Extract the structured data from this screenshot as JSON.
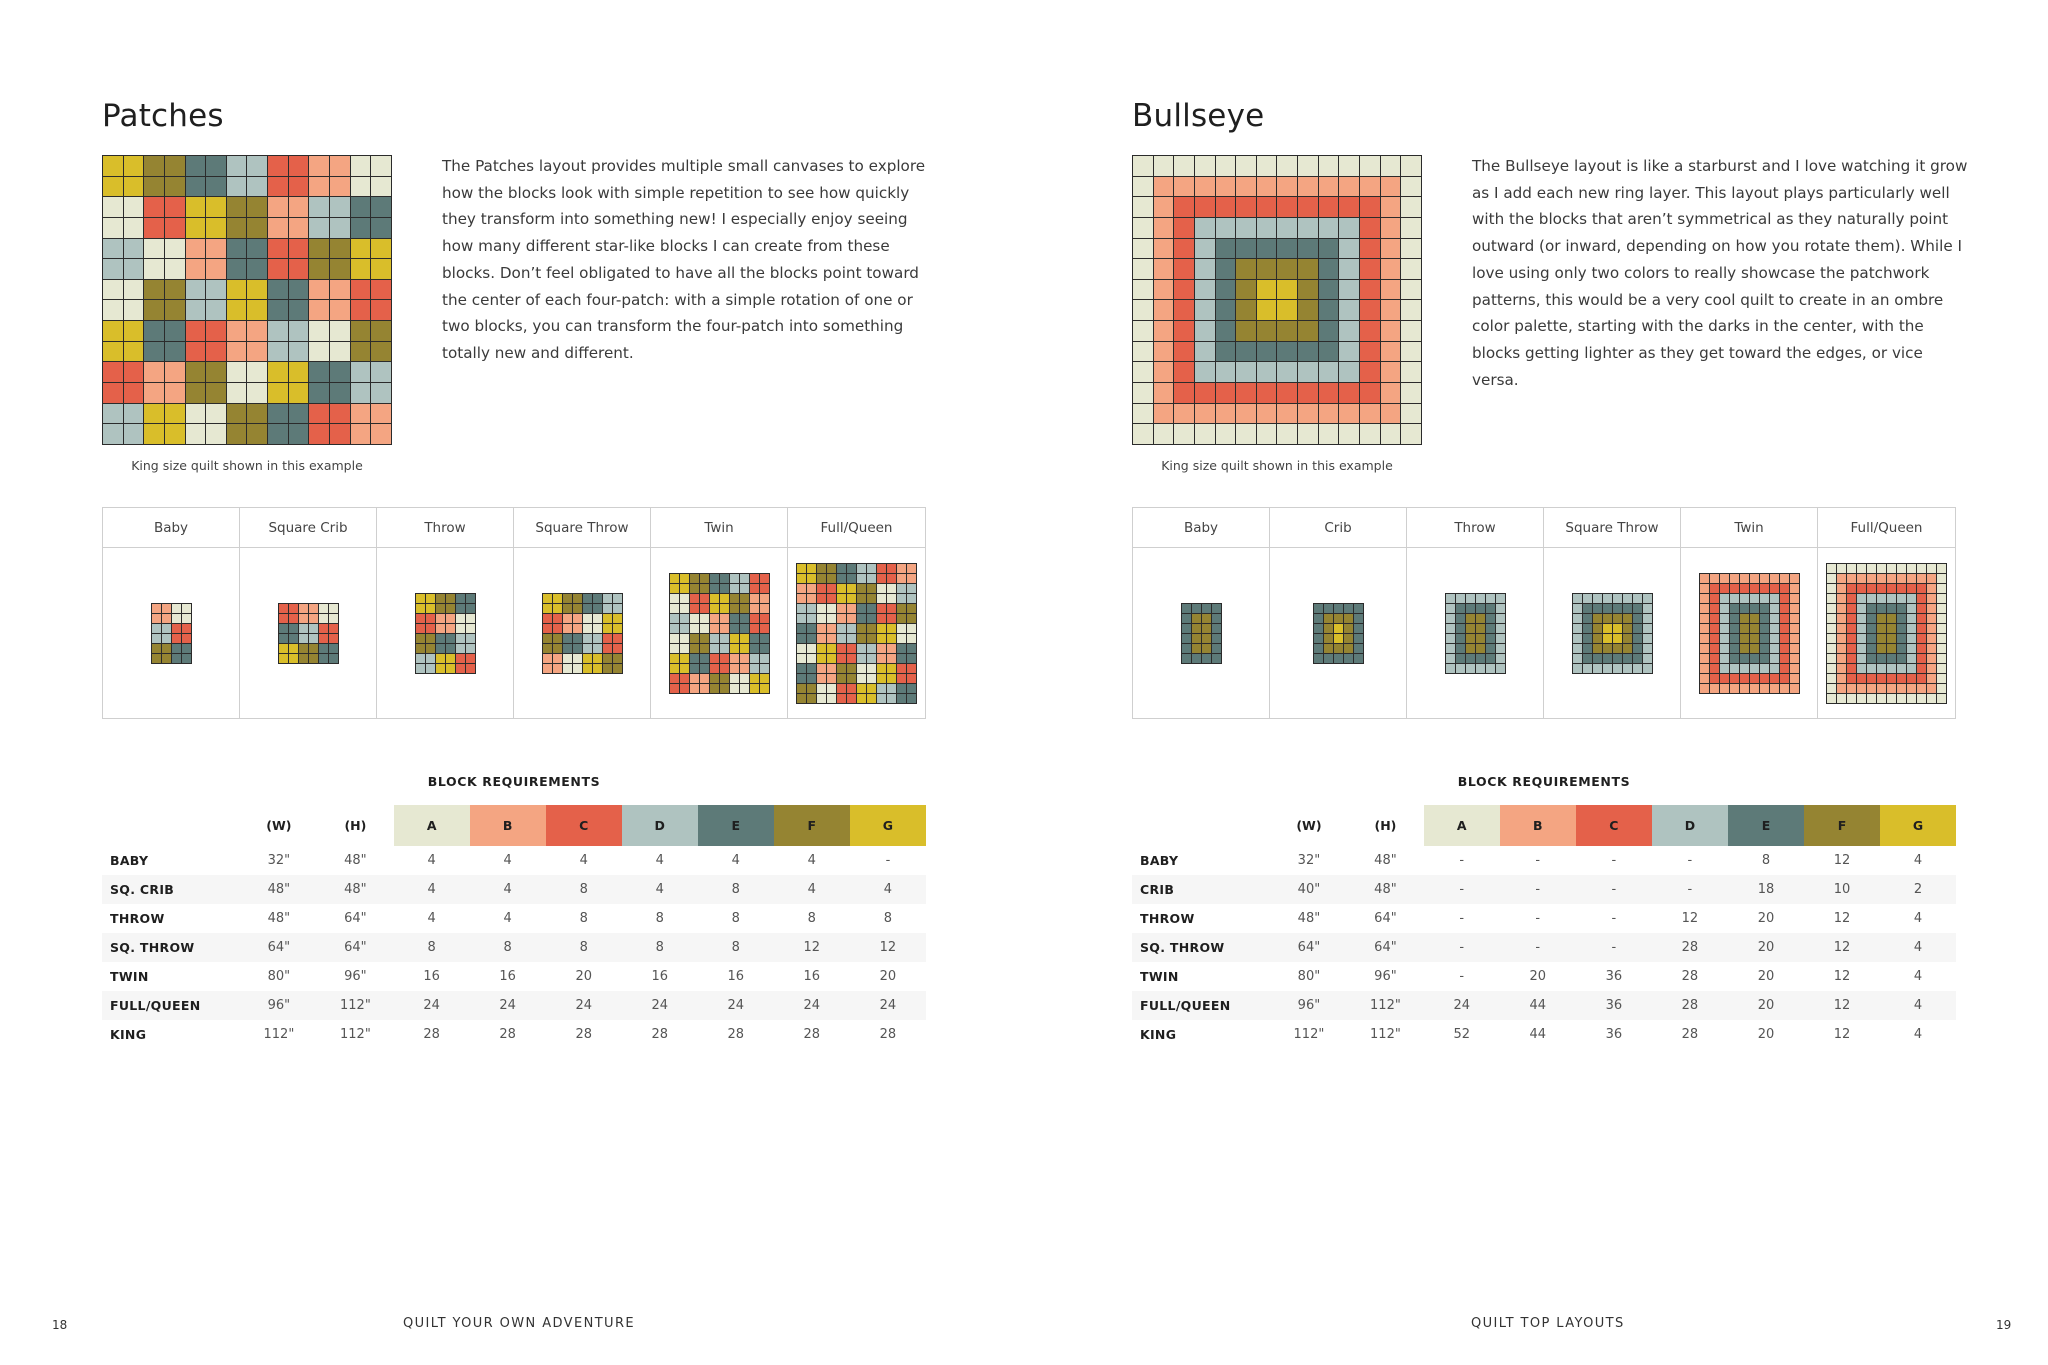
{
  "palette": {
    "A": "#E6E8D2",
    "B": "#F4A582",
    "C": "#E4614A",
    "D": "#AFC3C0",
    "E": "#5D7A78",
    "F": "#958432",
    "G": "#D9BE2A"
  },
  "left": {
    "title": "Patches",
    "paragraph": "The Patches layout provides multiple small canvases to explore how the blocks look with simple repetition to see how quickly they transform into something new! I especially enjoy seeing how many different star-like blocks I can create from these blocks. Don’t feel obligated to have all the blocks point toward the center of each four-patch: with a simple rotation of one or two blocks, you can transform the four-patch into something totally new and different.",
    "caption": "King size quilt shown in this example",
    "main_quilt": {
      "type": "patches",
      "rows": [
        "GFEDCBA",
        "ACGFBDE",
        "DABECFG",
        "AFDGEBC",
        "GECBDAF",
        "CBFAGED",
        "DGAFECB"
      ]
    },
    "sizes": [
      {
        "label": "Baby",
        "type": "patches",
        "rows": [
          "BA",
          "DC",
          "FE"
        ]
      },
      {
        "label": "Square Crib",
        "type": "patches",
        "rows": [
          "CBA",
          "EDC",
          "GFE"
        ]
      },
      {
        "label": "Throw",
        "type": "patches",
        "rows": [
          "GFE",
          "CBA",
          "FED",
          "DGC"
        ]
      },
      {
        "label": "Square Throw",
        "type": "patches",
        "rows": [
          "GFED",
          "CBAG",
          "FEDC",
          "BAGF"
        ]
      },
      {
        "label": "Twin",
        "type": "patches",
        "rows": [
          "GFEDC",
          "ACGFB",
          "DABEC",
          "AFDGE",
          "GECBD",
          "CBFAG"
        ]
      },
      {
        "label": "Full/Queen",
        "type": "patches",
        "rows": [
          "GFEDCB",
          "BCGFAD",
          "DABECF",
          "EBDFGA",
          "AGCDBE",
          "EBFAGC",
          "FACGDE"
        ]
      }
    ],
    "requirements": {
      "title": "BLOCK REQUIREMENTS",
      "columns": [
        "",
        "(W)",
        "(H)",
        "A",
        "B",
        "C",
        "D",
        "E",
        "F",
        "G"
      ],
      "rows": [
        [
          "BABY",
          "32\"",
          "48\"",
          "4",
          "4",
          "4",
          "4",
          "4",
          "4",
          "-"
        ],
        [
          "SQ. CRIB",
          "48\"",
          "48\"",
          "4",
          "4",
          "8",
          "4",
          "8",
          "4",
          "4"
        ],
        [
          "THROW",
          "48\"",
          "64\"",
          "4",
          "4",
          "8",
          "8",
          "8",
          "8",
          "8"
        ],
        [
          "SQ. THROW",
          "64\"",
          "64\"",
          "8",
          "8",
          "8",
          "8",
          "8",
          "12",
          "12"
        ],
        [
          "TWIN",
          "80\"",
          "96\"",
          "16",
          "16",
          "20",
          "16",
          "16",
          "16",
          "20"
        ],
        [
          "FULL/QUEEN",
          "96\"",
          "112\"",
          "24",
          "24",
          "24",
          "24",
          "24",
          "24",
          "24"
        ],
        [
          "KING",
          "112\"",
          "112\"",
          "28",
          "28",
          "28",
          "28",
          "28",
          "28",
          "28"
        ]
      ]
    },
    "footer": {
      "page_number": "18",
      "title": "QUILT YOUR OWN ADVENTURE"
    }
  },
  "right": {
    "title": "Bullseye",
    "paragraph": "The Bullseye layout is like a starburst and I love watching it grow as I add each new ring layer. This layout plays particularly well with the blocks that aren’t symmetrical as they naturally point outward (or inward, depending on how you rotate them). While I love using only two colors to really showcase the patchwork patterns, this would be a very cool quilt to create in an ombre color palette, starting with the darks in the center, with the blocks getting lighter as they get toward the edges, or vice versa.",
    "caption": "King size quilt shown in this example",
    "main_quilt": {
      "type": "bullseye",
      "w": 14,
      "h": 14,
      "rings": "ABCDEFG"
    },
    "sizes": [
      {
        "label": "Baby",
        "type": "bullseye",
        "w": 4,
        "h": 6,
        "rings": "EFG"
      },
      {
        "label": "Crib",
        "type": "bullseye",
        "w": 5,
        "h": 6,
        "rings": "EFG"
      },
      {
        "label": "Throw",
        "type": "bullseye",
        "w": 6,
        "h": 8,
        "rings": "DEFG"
      },
      {
        "label": "Square Throw",
        "type": "bullseye",
        "w": 8,
        "h": 8,
        "rings": "DEFG"
      },
      {
        "label": "Twin",
        "type": "bullseye",
        "w": 10,
        "h": 12,
        "rings": "BCDEFG"
      },
      {
        "label": "Full/Queen",
        "type": "bullseye",
        "w": 12,
        "h": 14,
        "rings": "ABCDEFG"
      }
    ],
    "requirements": {
      "title": "BLOCK REQUIREMENTS",
      "columns": [
        "",
        "(W)",
        "(H)",
        "A",
        "B",
        "C",
        "D",
        "E",
        "F",
        "G"
      ],
      "rows": [
        [
          "BABY",
          "32\"",
          "48\"",
          "-",
          "-",
          "-",
          "-",
          "8",
          "12",
          "4"
        ],
        [
          "CRIB",
          "40\"",
          "48\"",
          "-",
          "-",
          "-",
          "-",
          "18",
          "10",
          "2"
        ],
        [
          "THROW",
          "48\"",
          "64\"",
          "-",
          "-",
          "-",
          "12",
          "20",
          "12",
          "4"
        ],
        [
          "SQ. THROW",
          "64\"",
          "64\"",
          "-",
          "-",
          "-",
          "28",
          "20",
          "12",
          "4"
        ],
        [
          "TWIN",
          "80\"",
          "96\"",
          "-",
          "20",
          "36",
          "28",
          "20",
          "12",
          "4"
        ],
        [
          "FULL/QUEEN",
          "96\"",
          "112\"",
          "24",
          "44",
          "36",
          "28",
          "20",
          "12",
          "4"
        ],
        [
          "KING",
          "112\"",
          "112\"",
          "52",
          "44",
          "36",
          "28",
          "20",
          "12",
          "4"
        ]
      ]
    },
    "footer": {
      "page_number": "19",
      "title": "QUILT TOP LAYOUTS"
    }
  }
}
